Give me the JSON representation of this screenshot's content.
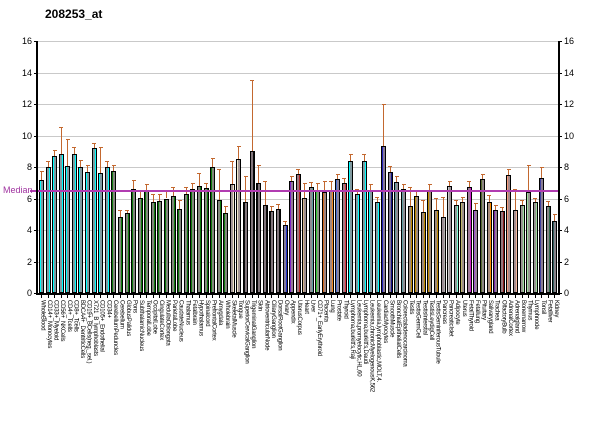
{
  "title": "208253_at",
  "chart_data": {
    "type": "bar",
    "title": "208253_at",
    "ylabel": "",
    "xlabel": "",
    "ylim": [
      0,
      16
    ],
    "yticks": [
      0,
      2,
      4,
      6,
      8,
      10,
      12,
      14,
      16
    ],
    "grid": true,
    "legend_position": "none",
    "median": {
      "label": "Median",
      "value": 6.5,
      "line_color": "#b13cb1",
      "label_color": "#a033a0"
    },
    "error_bar_color": "#c3682f",
    "bars": [
      {
        "label": "WholeBlood",
        "value": 7.2,
        "err_top": 7.75,
        "color": "#00ffff"
      },
      {
        "label": "CD14+_Monocytes",
        "value": 8.0,
        "err_top": 8.35,
        "color": "#00ffff"
      },
      {
        "label": "CD33+_Myeloid",
        "value": 8.7,
        "err_top": 9.05,
        "color": "#00ffff"
      },
      {
        "label": "CD56+_NKCells",
        "value": 8.85,
        "err_top": 10.55,
        "color": "#00ffff"
      },
      {
        "label": "CD4+_Tcells",
        "value": 8.05,
        "err_top": 9.8,
        "color": "#00ffff"
      },
      {
        "label": "CD8+_Tcells",
        "value": 8.85,
        "err_top": 9.3,
        "color": "#00ffff"
      },
      {
        "label": "BDCA4+_DentriticCells",
        "value": 8.0,
        "err_top": 8.45,
        "color": "#00ffff"
      },
      {
        "label": "CD19+_BCells(neg._sel.)",
        "value": 7.7,
        "err_top": 8.15,
        "color": "#00ffff"
      },
      {
        "label": "X721_B_lymphoblasts",
        "value": 9.2,
        "err_top": 9.5,
        "color": "#00ffff"
      },
      {
        "label": "CD105+_Endothelial",
        "value": 7.6,
        "err_top": 9.3,
        "color": "#00ffff"
      },
      {
        "label": "CD34+",
        "value": 8.0,
        "err_top": 8.4,
        "color": "#00ffff"
      },
      {
        "label": "CerebellumPeduncles",
        "value": 7.75,
        "err_top": 8.15,
        "color": "#0b7a0b"
      },
      {
        "label": "Cerebellum",
        "value": 4.85,
        "err_top": 5.25,
        "color": "#0b7a0b"
      },
      {
        "label": "GlobusPalidus",
        "value": 5.05,
        "err_top": 5.3,
        "color": "#0b7a0b"
      },
      {
        "label": "Pons",
        "value": 6.6,
        "err_top": 7.2,
        "color": "#0b7a0b"
      },
      {
        "label": "SubthalamicNucleus",
        "value": 6.05,
        "err_top": 6.5,
        "color": "#0b7a0b"
      },
      {
        "label": "TemporalLobe",
        "value": 6.45,
        "err_top": 6.9,
        "color": "#0b7a0b"
      },
      {
        "label": "OccipitalLobe",
        "value": 5.8,
        "err_top": 6.3,
        "color": "#0b7a0b"
      },
      {
        "label": "CingulateCortex",
        "value": 5.85,
        "err_top": 6.3,
        "color": "#0b7a0b"
      },
      {
        "label": "MedullaOblongata",
        "value": 6.0,
        "err_top": 6.45,
        "color": "#0b7a0b"
      },
      {
        "label": "ParietalLobe",
        "value": 6.15,
        "err_top": 6.7,
        "color": "#0b7a0b"
      },
      {
        "label": "CaudateNucleus",
        "value": 5.35,
        "err_top": 5.9,
        "color": "#0b7a0b"
      },
      {
        "label": "Thalamus",
        "value": 6.3,
        "err_top": 6.7,
        "color": "#0b7a0b"
      },
      {
        "label": "Fetalbrain",
        "value": 6.6,
        "err_top": 7.0,
        "color": "#0b7a0b"
      },
      {
        "label": "Hypothalamus",
        "value": 6.8,
        "err_top": 7.6,
        "color": "#0b7a0b"
      },
      {
        "label": "Spinalcord",
        "value": 6.65,
        "err_top": 7.0,
        "color": "#0b7a0b"
      },
      {
        "label": "PrefrontalCortex",
        "value": 8.0,
        "err_top": 8.6,
        "color": "#0b7a0b"
      },
      {
        "label": "Amygdala",
        "value": 5.9,
        "err_top": 7.85,
        "color": "#0b7a0b"
      },
      {
        "label": "Wholebrain",
        "value": 5.05,
        "err_top": 5.5,
        "color": "#0b7a0b"
      },
      {
        "label": "SkeletalMuscle",
        "value": 6.9,
        "err_top": 8.4,
        "color": "#f2e8c9"
      },
      {
        "label": "Tongue",
        "value": 8.5,
        "err_top": 9.35,
        "color": "#f2e8c9"
      },
      {
        "label": "SuperiorCervicalGanglion",
        "value": 5.75,
        "err_top": 7.45,
        "color": "#0a0a0a"
      },
      {
        "label": "TrigeminalGanglion",
        "value": 9.0,
        "err_top": 13.55,
        "color": "#0a0a0a"
      },
      {
        "label": "Skin",
        "value": 7.0,
        "err_top": 8.1,
        "color": "#0a0a0a"
      },
      {
        "label": "AtrioventricularNode",
        "value": 5.6,
        "err_top": 7.1,
        "color": "#0a0a0a"
      },
      {
        "label": "CiliaryGanglion",
        "value": 5.2,
        "err_top": 5.5,
        "color": "#0a0a0a"
      },
      {
        "label": "DorsalRootGanglion",
        "value": 5.35,
        "err_top": 5.65,
        "color": "#0a0a0a"
      },
      {
        "label": "Ovary",
        "value": 4.3,
        "err_top": 4.55,
        "color": "#2233cc"
      },
      {
        "label": "Appendix",
        "value": 7.1,
        "err_top": 7.4,
        "color": "#7b22c8"
      },
      {
        "label": "UterusCorpus",
        "value": 7.55,
        "err_top": 7.85,
        "color": "#b22222"
      },
      {
        "label": "Heart",
        "value": 6.05,
        "err_top": 7.0,
        "color": "#d2b48c"
      },
      {
        "label": "Liver",
        "value": 6.75,
        "err_top": 7.05,
        "color": "#5f9ea0"
      },
      {
        "label": "CD71+_EarlyErythroid",
        "value": 6.55,
        "err_top": 7.0,
        "color": "#33cc33"
      },
      {
        "label": "Placenta",
        "value": 6.4,
        "err_top": 7.1,
        "color": "#d2691e"
      },
      {
        "label": "Lung",
        "value": 6.55,
        "err_top": 7.1,
        "color": "#ee8822"
      },
      {
        "label": "Prostate",
        "value": 7.25,
        "err_top": 7.55,
        "color": "#4a6fd4"
      },
      {
        "label": "Thyroid",
        "value": 7.0,
        "err_top": 7.3,
        "color": "#dc3344"
      },
      {
        "label": "Lymphoma,burkitt's,Raji",
        "value": 8.35,
        "err_top": 8.85,
        "color": "#00ffff"
      },
      {
        "label": "Leukemia,promyelocytic,HL,60",
        "value": 6.3,
        "err_top": 6.6,
        "color": "#00ffff"
      },
      {
        "label": "Lymphoma,burkitt's,Daudi",
        "value": 8.35,
        "err_top": 8.8,
        "color": "#00ffff"
      },
      {
        "label": "Leukemia,chronicMyelogenousK,562",
        "value": 6.55,
        "err_top": 6.9,
        "color": "#00ffff"
      },
      {
        "label": "Leukemia,lymphoblastic,MOLT,4.",
        "value": 5.8,
        "err_top": 6.1,
        "color": "#00ffff"
      },
      {
        "label": "CardiacMyocytes",
        "value": 9.35,
        "err_top": 12.0,
        "color": "#2222bb"
      },
      {
        "label": "SmoothMuscle",
        "value": 7.7,
        "err_top": 8.05,
        "color": "#141488"
      },
      {
        "label": "BronchialEpithelialCells",
        "value": 7.05,
        "err_top": 7.4,
        "color": "#5f9ea0"
      },
      {
        "label": "Colorectaladenocarcinoma",
        "value": 6.6,
        "err_top": 6.95,
        "color": "#5f9ea0"
      },
      {
        "label": "Testis",
        "value": 5.55,
        "err_top": 6.75,
        "color": "#c08a00"
      },
      {
        "label": "TestisGermCell",
        "value": 6.15,
        "err_top": 6.45,
        "color": "#c08a00"
      },
      {
        "label": "TestisInterstial",
        "value": 5.15,
        "err_top": 5.9,
        "color": "#c08a00"
      },
      {
        "label": "TestisLeydigCell",
        "value": 6.55,
        "err_top": 6.9,
        "color": "#c08a00"
      },
      {
        "label": "TestisSeminiferousTubule",
        "value": 5.3,
        "err_top": 6.05,
        "color": "#c08a00"
      },
      {
        "label": "Pancreas",
        "value": 4.85,
        "err_top": 6.1,
        "color": "#b0b0b0"
      },
      {
        "label": "PancreaticIslet",
        "value": 6.8,
        "err_top": 7.1,
        "color": "#c8c8c8"
      },
      {
        "label": "Adipocyte",
        "value": 5.6,
        "err_top": 5.9,
        "color": "#7fffd4"
      },
      {
        "label": "Uterus",
        "value": 5.8,
        "err_top": 6.1,
        "color": "#bdb76b"
      },
      {
        "label": "FetalThyroid",
        "value": 6.75,
        "err_top": 7.1,
        "color": "#cc22cc"
      },
      {
        "label": "Fetallung",
        "value": 5.25,
        "err_top": 5.7,
        "color": "#a050d0"
      },
      {
        "label": "Pituitary",
        "value": 7.25,
        "err_top": 7.55,
        "color": "#556b2f"
      },
      {
        "label": "Salivarygland",
        "value": 5.8,
        "err_top": 6.2,
        "color": "#ff8c00"
      },
      {
        "label": "Trachea",
        "value": 5.3,
        "err_top": 5.6,
        "color": "#7722aa"
      },
      {
        "label": "OlfactoryBulb",
        "value": 5.2,
        "err_top": 5.45,
        "color": "#8b1a1a"
      },
      {
        "label": "AdrenalCortex",
        "value": 7.5,
        "err_top": 7.9,
        "color": "#f49b7a"
      },
      {
        "label": "Adrenalgland",
        "value": 5.3,
        "err_top": 6.6,
        "color": "#f5b9a0"
      },
      {
        "label": "Bonemarrow",
        "value": 5.6,
        "err_top": 5.9,
        "color": "#9fdf9f"
      },
      {
        "label": "Thymus",
        "value": 6.4,
        "err_top": 8.1,
        "color": "#9fdf9f"
      },
      {
        "label": "Lymphnode",
        "value": 5.75,
        "err_top": 6.05,
        "color": "#9fdf9f"
      },
      {
        "label": "Tonsil",
        "value": 7.3,
        "err_top": 8.0,
        "color": "#3f3f9f"
      },
      {
        "label": "Fetalliver",
        "value": 5.5,
        "err_top": 5.85,
        "color": "#2e6b50"
      },
      {
        "label": "Kidney",
        "value": 4.6,
        "err_top": 5.0,
        "color": "#2f5f5f"
      }
    ]
  },
  "layout_colors": {
    "background": "#ffffff",
    "gridline": "#c9c9c9",
    "axis": "#000000",
    "inner_stripe": "rgba(152,138,144,0.85)"
  }
}
